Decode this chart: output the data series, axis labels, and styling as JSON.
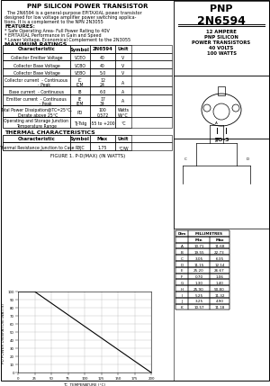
{
  "title_left": "PNP SILICON POWER TRANSISTOR",
  "desc_lines": [
    "  The 2N6594 is a general-purpose EPITAXIAL power transistor",
    "designed for low voltage amplifier power switching applica-",
    "tions. It is a complement to the NPN 2N3055"
  ],
  "features_title": "FEATURES:",
  "features": [
    "* Safe Operating Area- Full Power Rating to 40V",
    "* EPITAXIAL Performance in Gain and Speed",
    "* Lower Voltage, Economical Complement to the 2N3055"
  ],
  "max_ratings_title": "MAXIMUM RATINGS",
  "max_ratings_headers": [
    "Characteristic",
    "Symbol",
    "2N6594",
    "Unit"
  ],
  "max_ratings_rows": [
    [
      "Collector Emitter Voltage",
      "VCEO",
      "40",
      "V"
    ],
    [
      "Collector Base Voltage",
      "VCBO",
      "40",
      "V"
    ],
    [
      "Collector Base Voltage",
      "VEBO",
      "5.0",
      "V"
    ],
    [
      "Collector current  - Continuous\n            - Peak",
      "IC\nICM",
      "12\n24",
      "A"
    ],
    [
      "Base current  - Continuous",
      "IB",
      "6.0",
      "A"
    ],
    [
      "Emitter current  - Continuous\n             - Peak",
      "IE\nIEM",
      "17\n34",
      "A"
    ],
    [
      "Total Power Dissipation@TC=25°C,\n  Derate above 25°C",
      "PD",
      "100\n0.572",
      "Watts\nW/°C"
    ],
    [
      "Operating and Storage Junction\nTemperature Range",
      "TJ-Tstg",
      "-55 to +200",
      "°C"
    ]
  ],
  "thermal_title": "THERMAL CHARACTERISTICS",
  "thermal_headers": [
    "Characteristic",
    "Symbol",
    "Max",
    "Unit"
  ],
  "thermal_rows": [
    [
      "Thermal Resistance Junction to Case",
      "RθJC",
      "1.75",
      "°C/W"
    ]
  ],
  "pnp_label": "PNP",
  "part_number": "2N6594",
  "spec_lines": [
    "12 AMPERE",
    "PNP SILICON",
    "POWER TRANSISTORS",
    "40 VOLTS",
    "100 WATTS"
  ],
  "package_label": "TO-3",
  "graph_title": "FIGURE 1. P-D(MAX) (IN WATTS)",
  "graph_xlabel": "TC  TEMPERATURE (°C)",
  "graph_ylabel": "PD POWER DISSIPATION (WATTS)",
  "graph_x": [
    0,
    25,
    50,
    75,
    100,
    125,
    150,
    175,
    200
  ],
  "graph_y": [
    100,
    100,
    85.7,
    71.4,
    57.1,
    42.8,
    28.5,
    14.2,
    0
  ],
  "graph_yticks": [
    0,
    10,
    20,
    30,
    40,
    50,
    60,
    70,
    80,
    90,
    100
  ],
  "graph_xticks": [
    0,
    25,
    50,
    75,
    100,
    125,
    150,
    175,
    200
  ],
  "dim_rows": [
    [
      "A",
      "10.71",
      "11.68"
    ],
    [
      "B",
      "19.55",
      "22.73"
    ],
    [
      "C",
      "3.05",
      "6.35"
    ],
    [
      "D",
      "11.15",
      "12.14"
    ],
    [
      "E",
      "25.20",
      "26.67"
    ],
    [
      "F",
      "0.70",
      "1.06"
    ],
    [
      "G",
      "1.30",
      "1.40"
    ],
    [
      "H",
      "25.90",
      "50.80"
    ],
    [
      "I",
      "5.25",
      "11.32"
    ],
    [
      "J",
      "3.25",
      "4.90"
    ],
    [
      "K",
      "10.57",
      "11.18"
    ]
  ],
  "bg_color": "#ffffff"
}
